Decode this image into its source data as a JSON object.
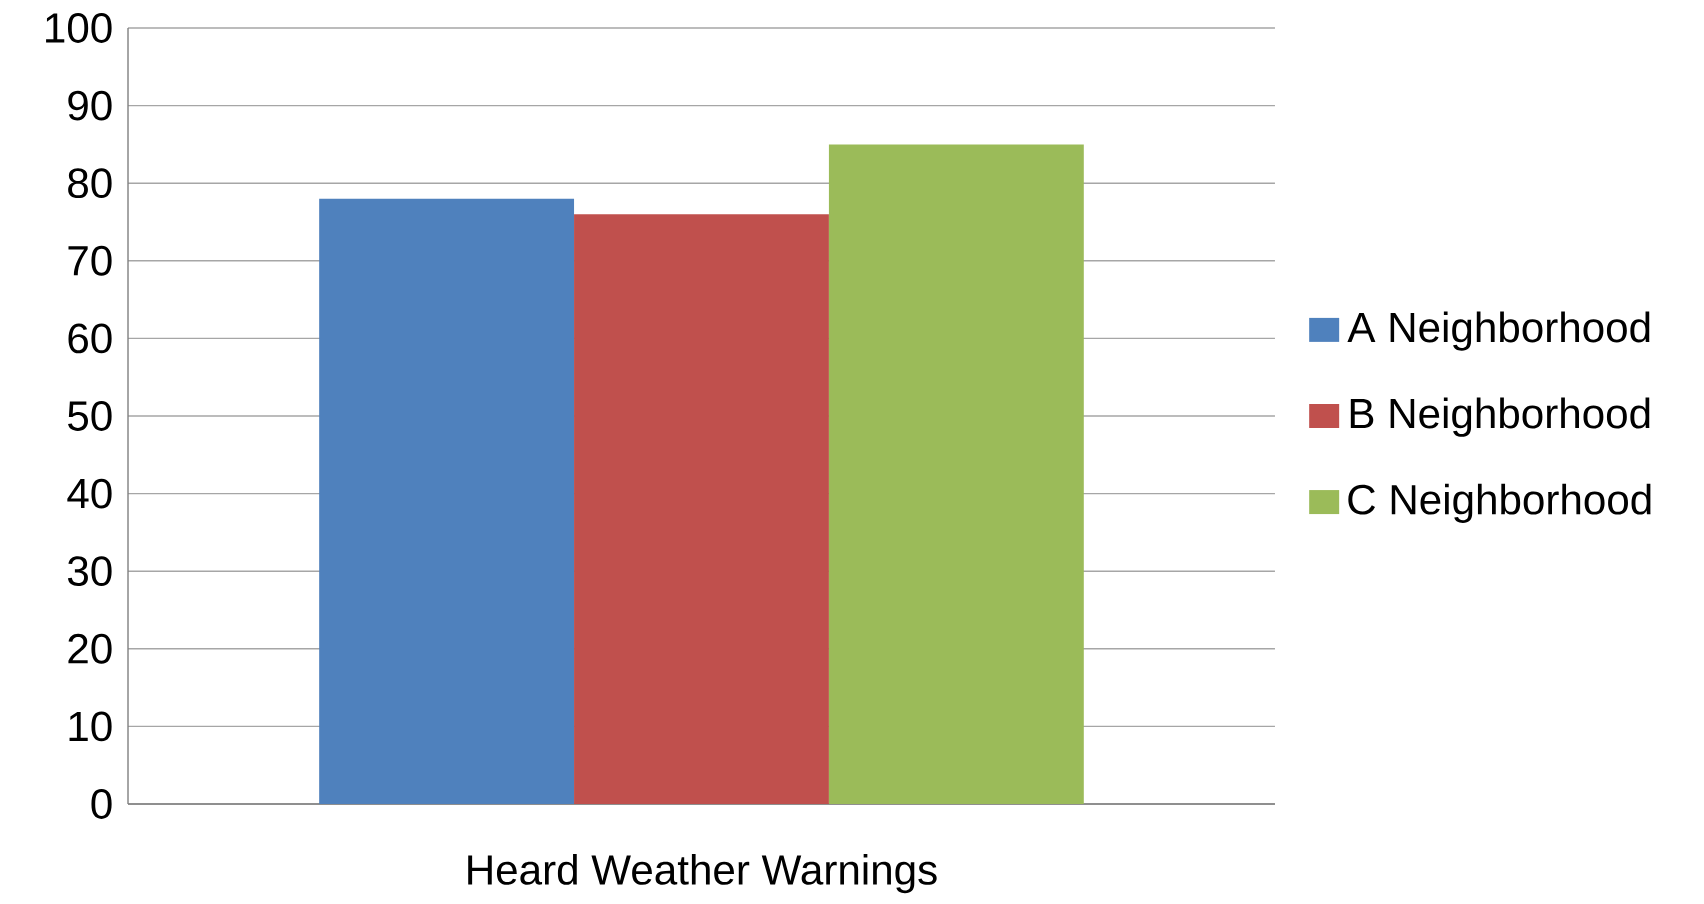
{
  "chart_data": {
    "type": "bar",
    "categories": [
      "Heard Weather Warnings"
    ],
    "series": [
      {
        "name": "A Neighborhood",
        "color": "#4f81bd",
        "values": [
          78
        ]
      },
      {
        "name": "B Neighborhood",
        "color": "#c0504d",
        "values": [
          76
        ]
      },
      {
        "name": "C Neighborhood",
        "color": "#9bbb59",
        "values": [
          85
        ]
      }
    ],
    "ylim": [
      0,
      100
    ],
    "yticks": [
      0,
      10,
      20,
      30,
      40,
      50,
      60,
      70,
      80,
      90,
      100
    ],
    "grid": "y",
    "legend": "right"
  }
}
